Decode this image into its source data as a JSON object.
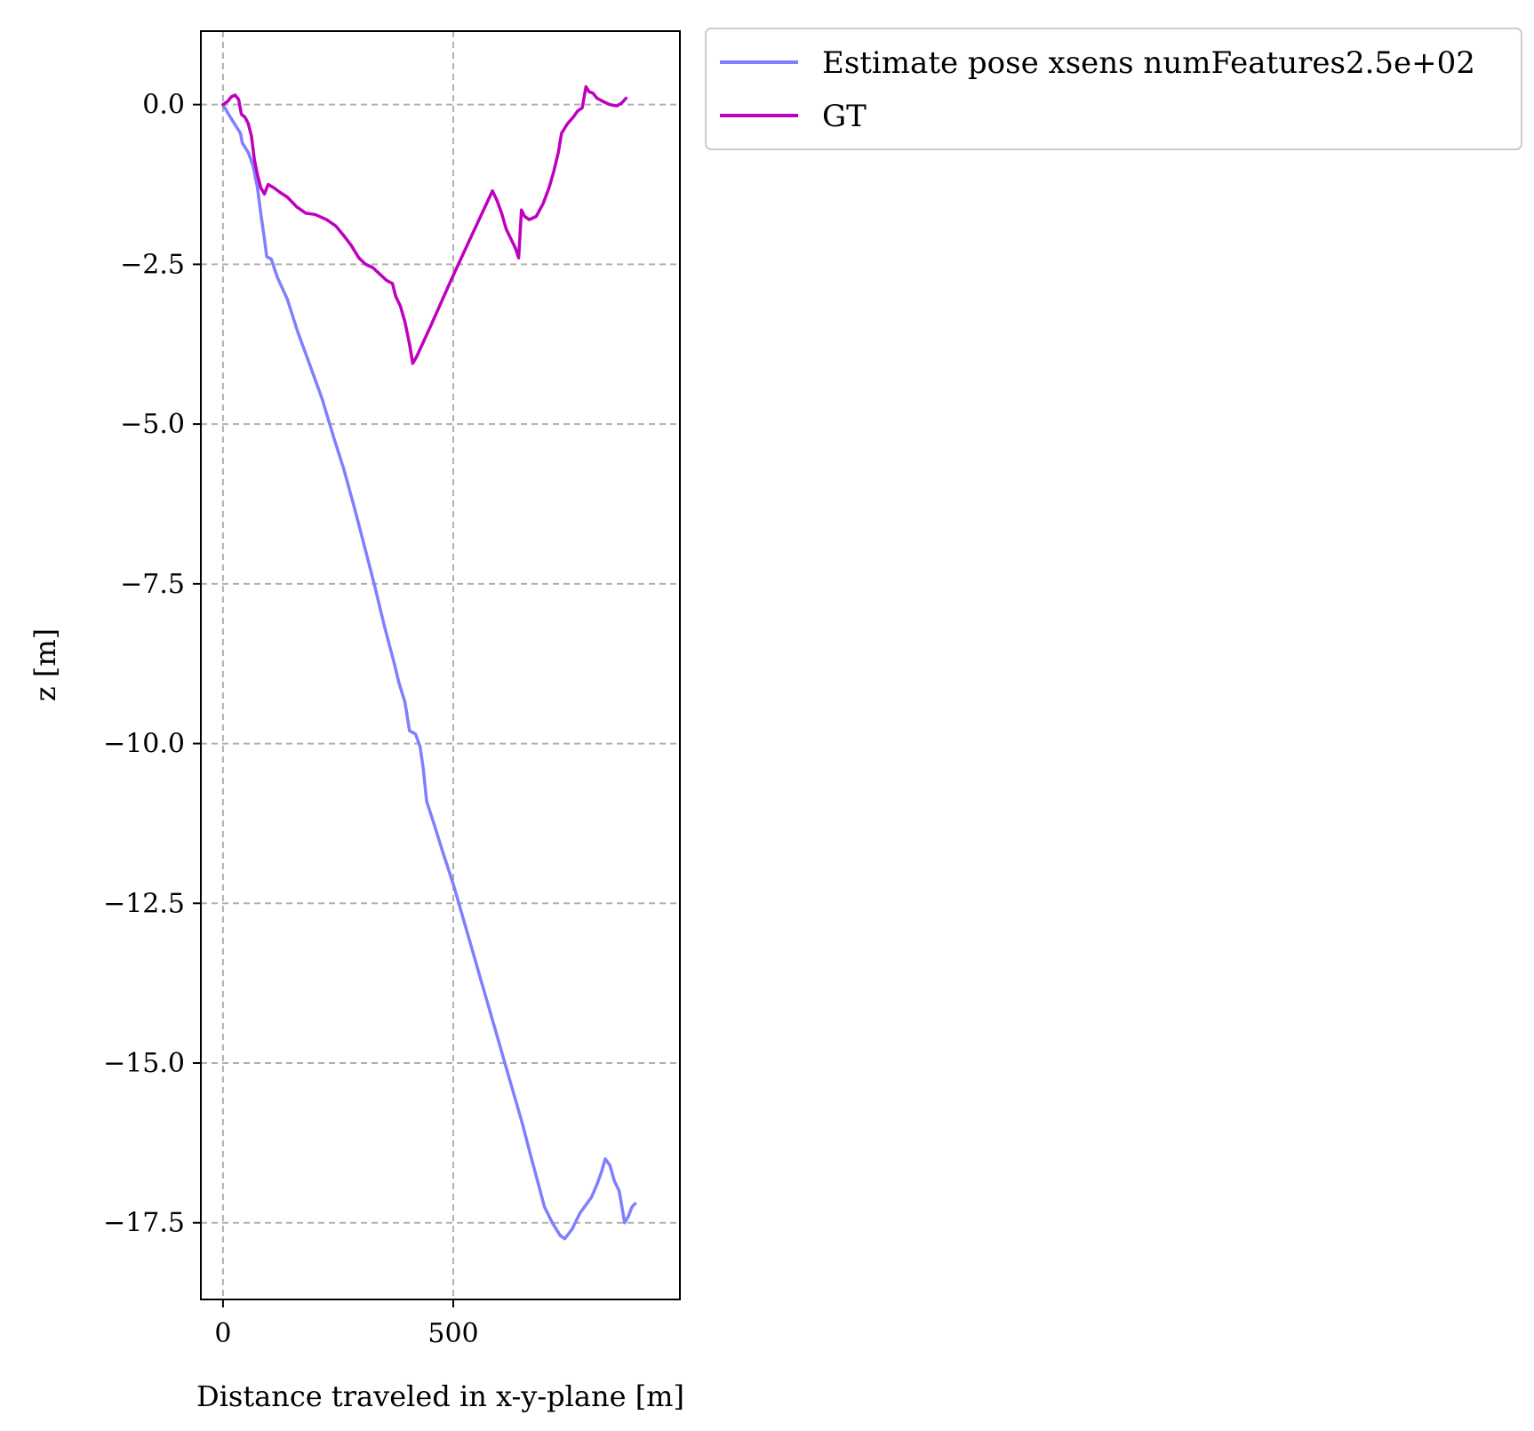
{
  "chart_data": {
    "type": "line",
    "title": "",
    "xlabel": "Distance traveled in x-y-plane [m]",
    "ylabel": "z [m]",
    "xlim": [
      -48,
      992
    ],
    "ylim": [
      -18.7,
      1.15
    ],
    "grid": true,
    "legend_placement": "outside-top-right",
    "x_ticks": [
      {
        "value": 0,
        "label": "0"
      },
      {
        "value": 500,
        "label": "500"
      }
    ],
    "y_ticks": [
      {
        "value": 0.0,
        "label": "0.0"
      },
      {
        "value": -2.5,
        "label": "−2.5"
      },
      {
        "value": -5.0,
        "label": "−5.0"
      },
      {
        "value": -7.5,
        "label": "−7.5"
      },
      {
        "value": -10.0,
        "label": "−10.0"
      },
      {
        "value": -12.5,
        "label": "−12.5"
      },
      {
        "value": -15.0,
        "label": "−15.0"
      },
      {
        "value": -17.5,
        "label": "−17.5"
      }
    ],
    "series": [
      {
        "name": "Estimate pose xsens numFeatures2.5e+02",
        "color": "#7f7fff",
        "points": [
          [
            0,
            0.0
          ],
          [
            12,
            -0.15
          ],
          [
            25,
            -0.3
          ],
          [
            38,
            -0.45
          ],
          [
            42,
            -0.6
          ],
          [
            55,
            -0.75
          ],
          [
            65,
            -0.95
          ],
          [
            75,
            -1.3
          ],
          [
            82,
            -1.7
          ],
          [
            90,
            -2.1
          ],
          [
            95,
            -2.38
          ],
          [
            105,
            -2.42
          ],
          [
            118,
            -2.7
          ],
          [
            140,
            -3.05
          ],
          [
            162,
            -3.55
          ],
          [
            190,
            -4.1
          ],
          [
            215,
            -4.6
          ],
          [
            240,
            -5.2
          ],
          [
            262,
            -5.7
          ],
          [
            285,
            -6.3
          ],
          [
            305,
            -6.85
          ],
          [
            330,
            -7.55
          ],
          [
            350,
            -8.15
          ],
          [
            372,
            -8.75
          ],
          [
            382,
            -9.05
          ],
          [
            395,
            -9.35
          ],
          [
            405,
            -9.8
          ],
          [
            418,
            -9.85
          ],
          [
            428,
            -10.05
          ],
          [
            435,
            -10.4
          ],
          [
            442,
            -10.9
          ],
          [
            460,
            -11.3
          ],
          [
            475,
            -11.65
          ],
          [
            500,
            -12.2
          ],
          [
            530,
            -12.95
          ],
          [
            560,
            -13.7
          ],
          [
            590,
            -14.45
          ],
          [
            620,
            -15.2
          ],
          [
            650,
            -15.95
          ],
          [
            668,
            -16.45
          ],
          [
            683,
            -16.85
          ],
          [
            698,
            -17.25
          ],
          [
            715,
            -17.5
          ],
          [
            732,
            -17.7
          ],
          [
            742,
            -17.75
          ],
          [
            758,
            -17.6
          ],
          [
            775,
            -17.35
          ],
          [
            790,
            -17.2
          ],
          [
            800,
            -17.1
          ],
          [
            812,
            -16.9
          ],
          [
            822,
            -16.7
          ],
          [
            830,
            -16.5
          ],
          [
            840,
            -16.6
          ],
          [
            850,
            -16.85
          ],
          [
            860,
            -17.0
          ],
          [
            865,
            -17.2
          ],
          [
            872,
            -17.5
          ],
          [
            880,
            -17.4
          ],
          [
            888,
            -17.25
          ],
          [
            895,
            -17.2
          ]
        ]
      },
      {
        "name": "GT",
        "color": "#bf00bf",
        "points": [
          [
            0,
            0.0
          ],
          [
            10,
            0.05
          ],
          [
            18,
            0.12
          ],
          [
            26,
            0.15
          ],
          [
            34,
            0.08
          ],
          [
            40,
            -0.15
          ],
          [
            48,
            -0.2
          ],
          [
            55,
            -0.3
          ],
          [
            62,
            -0.5
          ],
          [
            68,
            -0.85
          ],
          [
            75,
            -1.1
          ],
          [
            82,
            -1.3
          ],
          [
            90,
            -1.4
          ],
          [
            98,
            -1.25
          ],
          [
            110,
            -1.3
          ],
          [
            125,
            -1.38
          ],
          [
            140,
            -1.45
          ],
          [
            160,
            -1.6
          ],
          [
            180,
            -1.7
          ],
          [
            200,
            -1.72
          ],
          [
            225,
            -1.8
          ],
          [
            245,
            -1.9
          ],
          [
            262,
            -2.05
          ],
          [
            278,
            -2.2
          ],
          [
            295,
            -2.4
          ],
          [
            310,
            -2.5
          ],
          [
            325,
            -2.55
          ],
          [
            340,
            -2.65
          ],
          [
            355,
            -2.75
          ],
          [
            368,
            -2.8
          ],
          [
            375,
            -3.0
          ],
          [
            385,
            -3.15
          ],
          [
            395,
            -3.4
          ],
          [
            405,
            -3.75
          ],
          [
            412,
            -4.05
          ],
          [
            420,
            -3.95
          ],
          [
            452,
            -3.45
          ],
          [
            495,
            -2.75
          ],
          [
            540,
            -2.05
          ],
          [
            585,
            -1.35
          ],
          [
            595,
            -1.5
          ],
          [
            605,
            -1.7
          ],
          [
            615,
            -1.95
          ],
          [
            625,
            -2.1
          ],
          [
            635,
            -2.25
          ],
          [
            642,
            -2.4
          ],
          [
            648,
            -1.65
          ],
          [
            655,
            -1.75
          ],
          [
            665,
            -1.8
          ],
          [
            680,
            -1.75
          ],
          [
            695,
            -1.55
          ],
          [
            708,
            -1.3
          ],
          [
            718,
            -1.05
          ],
          [
            728,
            -0.75
          ],
          [
            735,
            -0.45
          ],
          [
            748,
            -0.3
          ],
          [
            760,
            -0.2
          ],
          [
            770,
            -0.1
          ],
          [
            780,
            -0.05
          ],
          [
            788,
            0.28
          ],
          [
            795,
            0.2
          ],
          [
            803,
            0.18
          ],
          [
            812,
            0.1
          ],
          [
            825,
            0.05
          ],
          [
            840,
            0.0
          ],
          [
            855,
            -0.02
          ],
          [
            865,
            0.02
          ],
          [
            875,
            0.1
          ]
        ]
      }
    ]
  }
}
